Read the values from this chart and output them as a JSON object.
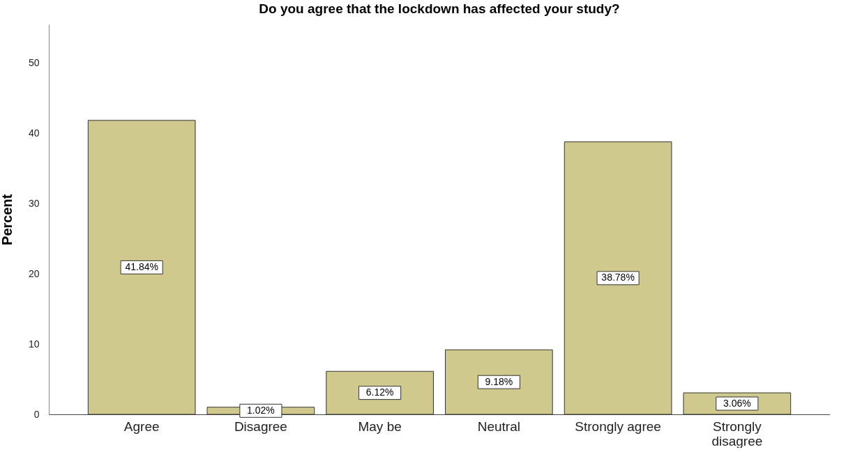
{
  "chart_data": {
    "type": "bar",
    "title": "Do you agree that the lockdown has affected your study?",
    "ylabel": "Percent",
    "categories": [
      "Agree",
      "Disagree",
      "May  be",
      "Neutral",
      "Strongly agree",
      "Strongly disagree"
    ],
    "values": [
      41.84,
      1.02,
      6.12,
      9.18,
      38.78,
      3.06
    ],
    "value_labels": [
      "41.84%",
      "1.02%",
      "6.12%",
      "9.18%",
      "38.78%",
      "3.06%"
    ],
    "color": "#cfc98e",
    "ylim": [
      0,
      55.5
    ],
    "yticks": [
      0,
      10,
      20,
      30,
      40,
      50
    ],
    "grid": false
  }
}
